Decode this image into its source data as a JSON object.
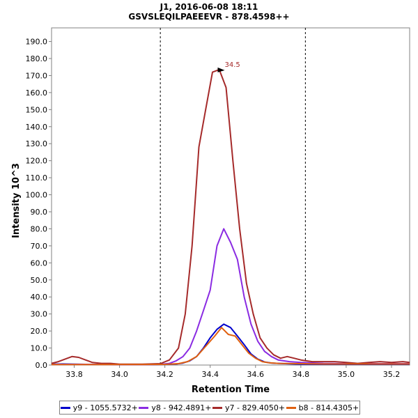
{
  "chart_data": {
    "type": "line",
    "title": "J1, 2016-06-08 18:11",
    "subtitle": "GSVSLEQILPAEEEVR - 878.4598++",
    "xlabel": "Retention Time",
    "ylabel": "Intensity 10^3",
    "xlim": [
      33.7,
      35.28
    ],
    "ylim": [
      0,
      198
    ],
    "x_ticks": [
      "33.8",
      "34.0",
      "34.2",
      "34.4",
      "34.6",
      "34.8",
      "35.0",
      "35.2"
    ],
    "y_ticks": [
      "0.0",
      "10.0",
      "20.0",
      "30.0",
      "40.0",
      "50.0",
      "60.0",
      "70.0",
      "80.0",
      "90.0",
      "100.0",
      "110.0",
      "120.0",
      "130.0",
      "140.0",
      "150.0",
      "160.0",
      "170.0",
      "180.0",
      "190.0"
    ],
    "boundaries": [
      34.18,
      34.82
    ],
    "peak_annotation": {
      "label": "34.5",
      "x": 34.47,
      "y": 173.5
    },
    "grid": false,
    "legend_position": "bottom",
    "series": [
      {
        "name": "y9 - 1055.5732+",
        "color": "#0000cc",
        "points": [
          [
            33.7,
            0.5
          ],
          [
            33.75,
            0.6
          ],
          [
            33.8,
            0.5
          ],
          [
            33.85,
            0.4
          ],
          [
            33.9,
            0.4
          ],
          [
            33.95,
            0.4
          ],
          [
            34.0,
            0.3
          ],
          [
            34.05,
            0.3
          ],
          [
            34.1,
            0.3
          ],
          [
            34.15,
            0.3
          ],
          [
            34.2,
            0.4
          ],
          [
            34.25,
            0.6
          ],
          [
            34.28,
            1.2
          ],
          [
            34.31,
            2.5
          ],
          [
            34.34,
            5
          ],
          [
            34.37,
            10
          ],
          [
            34.4,
            16
          ],
          [
            34.43,
            21
          ],
          [
            34.46,
            24
          ],
          [
            34.49,
            22
          ],
          [
            34.52,
            17
          ],
          [
            34.55,
            12
          ],
          [
            34.58,
            6.5
          ],
          [
            34.61,
            3.5
          ],
          [
            34.64,
            1.8
          ],
          [
            34.67,
            1.2
          ],
          [
            34.7,
            1.0
          ],
          [
            34.75,
            0.7
          ],
          [
            34.8,
            0.5
          ],
          [
            34.9,
            0.4
          ],
          [
            35.0,
            0.4
          ],
          [
            35.1,
            0.4
          ],
          [
            35.2,
            0.4
          ],
          [
            35.28,
            0.4
          ]
        ]
      },
      {
        "name": "y8 - 942.4891+",
        "color": "#8a2be2",
        "points": [
          [
            33.7,
            0.4
          ],
          [
            33.8,
            0.4
          ],
          [
            33.9,
            0.4
          ],
          [
            34.0,
            0.3
          ],
          [
            34.1,
            0.3
          ],
          [
            34.18,
            0.4
          ],
          [
            34.22,
            1
          ],
          [
            34.25,
            2.5
          ],
          [
            34.28,
            5
          ],
          [
            34.31,
            10
          ],
          [
            34.34,
            20
          ],
          [
            34.37,
            32
          ],
          [
            34.4,
            44
          ],
          [
            34.43,
            70
          ],
          [
            34.46,
            80
          ],
          [
            34.49,
            72
          ],
          [
            34.52,
            62
          ],
          [
            34.55,
            40
          ],
          [
            34.58,
            24
          ],
          [
            34.61,
            14
          ],
          [
            34.64,
            8
          ],
          [
            34.67,
            5
          ],
          [
            34.7,
            3
          ],
          [
            34.75,
            2
          ],
          [
            34.8,
            1.5
          ],
          [
            34.9,
            1.0
          ],
          [
            35.0,
            0.8
          ],
          [
            35.1,
            0.8
          ],
          [
            35.2,
            0.8
          ],
          [
            35.28,
            0.8
          ]
        ]
      },
      {
        "name": "y7 - 829.4050+",
        "color": "#a52a2a",
        "points": [
          [
            33.7,
            1
          ],
          [
            33.73,
            2
          ],
          [
            33.76,
            3.5
          ],
          [
            33.79,
            5
          ],
          [
            33.82,
            4.5
          ],
          [
            33.85,
            3
          ],
          [
            33.88,
            1.5
          ],
          [
            33.92,
            1
          ],
          [
            33.96,
            1
          ],
          [
            34.0,
            0.5
          ],
          [
            34.1,
            0.5
          ],
          [
            34.18,
            0.8
          ],
          [
            34.22,
            3
          ],
          [
            34.26,
            10
          ],
          [
            34.29,
            30
          ],
          [
            34.32,
            70
          ],
          [
            34.35,
            128
          ],
          [
            34.38,
            150
          ],
          [
            34.41,
            172
          ],
          [
            34.44,
            173.5
          ],
          [
            34.47,
            163
          ],
          [
            34.5,
            120
          ],
          [
            34.53,
            80
          ],
          [
            34.56,
            48
          ],
          [
            34.59,
            30
          ],
          [
            34.62,
            16
          ],
          [
            34.65,
            10
          ],
          [
            34.68,
            6
          ],
          [
            34.71,
            4
          ],
          [
            34.74,
            5
          ],
          [
            34.77,
            4
          ],
          [
            34.8,
            3
          ],
          [
            34.85,
            2
          ],
          [
            34.9,
            2
          ],
          [
            34.95,
            2
          ],
          [
            35.0,
            1.5
          ],
          [
            35.05,
            1
          ],
          [
            35.1,
            1.5
          ],
          [
            35.15,
            2
          ],
          [
            35.2,
            1.5
          ],
          [
            35.25,
            2
          ],
          [
            35.28,
            1.5
          ]
        ]
      },
      {
        "name": "b8 - 814.4305+",
        "color": "#e06010",
        "points": [
          [
            33.7,
            0.3
          ],
          [
            33.8,
            0.3
          ],
          [
            33.9,
            0.3
          ],
          [
            34.0,
            0.3
          ],
          [
            34.1,
            0.3
          ],
          [
            34.2,
            0.4
          ],
          [
            34.26,
            0.8
          ],
          [
            34.3,
            2
          ],
          [
            34.34,
            5
          ],
          [
            34.38,
            11
          ],
          [
            34.42,
            17
          ],
          [
            34.45,
            22
          ],
          [
            34.48,
            18
          ],
          [
            34.51,
            17
          ],
          [
            34.54,
            12
          ],
          [
            34.57,
            7
          ],
          [
            34.6,
            4
          ],
          [
            34.63,
            2
          ],
          [
            34.66,
            1.3
          ],
          [
            34.7,
            1
          ],
          [
            34.8,
            0.8
          ],
          [
            34.9,
            0.6
          ],
          [
            35.0,
            0.6
          ],
          [
            35.1,
            0.6
          ],
          [
            35.2,
            0.6
          ],
          [
            35.28,
            0.6
          ]
        ]
      }
    ]
  }
}
